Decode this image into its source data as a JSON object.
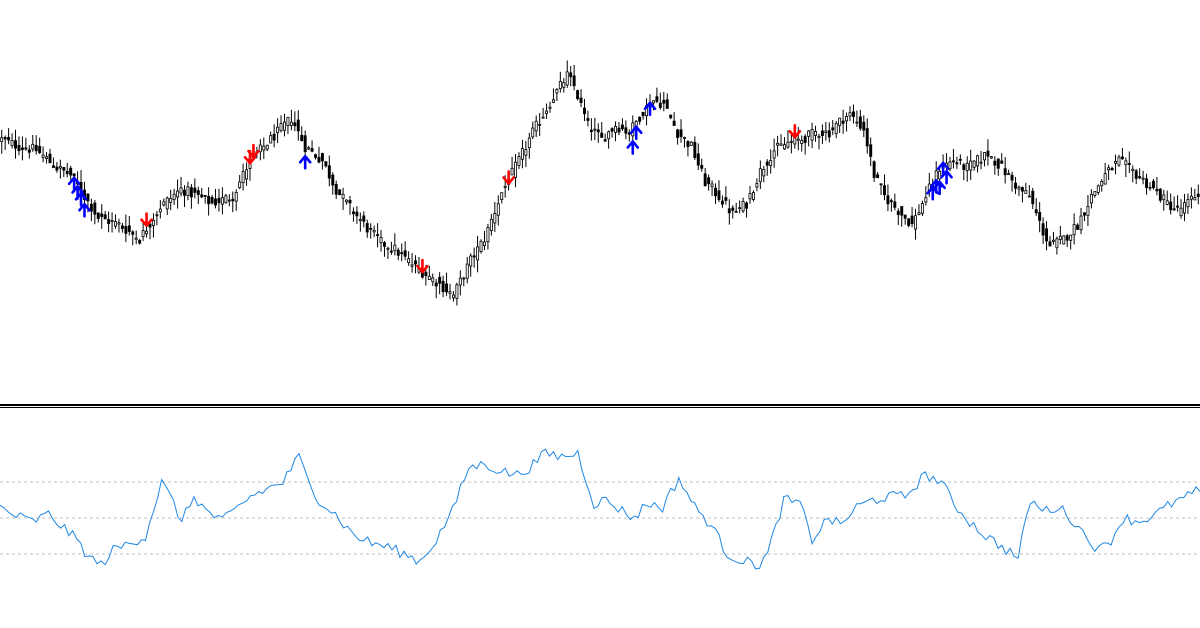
{
  "colors": {
    "background": "#ffffff",
    "candle": "#000000",
    "separator": "#000000",
    "oscillator_line": "#1e88e5",
    "level_line": "#c0c0c0",
    "buy_arrow": "#0000ff",
    "sell_arrow": "#ff0000"
  },
  "icons": {
    "buy_arrow": "arrow-up-icon",
    "sell_arrow": "arrow-down-icon"
  },
  "chart_data": [
    {
      "type": "candlestick",
      "panel": "price",
      "title": "",
      "xlabel": "",
      "ylabel": "",
      "grid": false,
      "ylim": [
        0,
        100
      ],
      "anchors": [
        [
          0,
          72
        ],
        [
          5,
          70
        ],
        [
          10,
          69
        ],
        [
          16,
          64
        ],
        [
          20,
          62
        ],
        [
          28,
          50
        ],
        [
          34,
          48
        ],
        [
          40,
          44
        ],
        [
          46,
          53
        ],
        [
          52,
          58
        ],
        [
          57,
          56
        ],
        [
          61,
          54
        ],
        [
          67,
          56
        ],
        [
          72,
          66
        ],
        [
          78,
          72
        ],
        [
          84,
          78
        ],
        [
          88,
          70
        ],
        [
          93,
          66
        ],
        [
          97,
          58
        ],
        [
          100,
          54
        ],
        [
          106,
          47
        ],
        [
          110,
          43
        ],
        [
          114,
          41
        ],
        [
          120,
          36
        ],
        [
          126,
          32
        ],
        [
          131,
          28
        ],
        [
          136,
          38
        ],
        [
          140,
          44
        ],
        [
          145,
          57
        ],
        [
          150,
          66
        ],
        [
          154,
          74
        ],
        [
          160,
          84
        ],
        [
          164,
          90
        ],
        [
          166,
          87
        ],
        [
          170,
          76
        ],
        [
          174,
          72
        ],
        [
          178,
          76
        ],
        [
          182,
          74
        ],
        [
          186,
          80
        ],
        [
          189,
          83
        ],
        [
          192,
          82
        ],
        [
          196,
          74
        ],
        [
          200,
          70
        ],
        [
          204,
          60
        ],
        [
          208,
          56
        ],
        [
          212,
          51
        ],
        [
          216,
          54
        ],
        [
          220,
          63
        ],
        [
          224,
          69
        ],
        [
          228,
          71
        ],
        [
          232,
          72
        ],
        [
          236,
          74
        ],
        [
          240,
          74
        ],
        [
          244,
          78
        ],
        [
          246,
          79
        ],
        [
          250,
          75
        ],
        [
          253,
          62
        ],
        [
          256,
          56
        ],
        [
          260,
          52
        ],
        [
          264,
          48
        ],
        [
          268,
          56
        ],
        [
          272,
          64
        ],
        [
          276,
          66
        ],
        [
          280,
          64
        ],
        [
          286,
          68
        ],
        [
          290,
          64
        ],
        [
          295,
          58
        ],
        [
          298,
          56
        ],
        [
          302,
          46
        ],
        [
          304,
          42
        ],
        [
          308,
          44
        ],
        [
          312,
          48
        ],
        [
          316,
          56
        ],
        [
          320,
          62
        ],
        [
          324,
          66
        ],
        [
          328,
          63
        ],
        [
          334,
          58
        ],
        [
          338,
          54
        ],
        [
          341,
          52
        ],
        [
          344,
          54
        ],
        [
          347,
          57
        ]
      ],
      "sell_signals": [
        42,
        72,
        73,
        122,
        147,
        230
      ],
      "buy_signals": [
        21,
        22,
        23,
        24,
        88,
        183,
        184,
        188,
        270,
        271,
        272,
        273,
        274
      ]
    },
    {
      "type": "line",
      "panel": "oscillator",
      "title": "",
      "xlabel": "",
      "ylabel": "",
      "grid": false,
      "ylim": [
        0,
        100
      ],
      "levels": [
        30,
        50,
        70
      ],
      "anchors": [
        [
          0,
          56
        ],
        [
          3,
          52
        ],
        [
          8,
          48
        ],
        [
          12,
          52
        ],
        [
          16,
          44
        ],
        [
          19,
          38
        ],
        [
          22,
          28
        ],
        [
          25,
          24
        ],
        [
          28,
          32
        ],
        [
          32,
          36
        ],
        [
          36,
          40
        ],
        [
          40,
          70
        ],
        [
          43,
          58
        ],
        [
          45,
          48
        ],
        [
          48,
          62
        ],
        [
          51,
          54
        ],
        [
          55,
          48
        ],
        [
          58,
          54
        ],
        [
          62,
          62
        ],
        [
          66,
          66
        ],
        [
          70,
          70
        ],
        [
          74,
          84
        ],
        [
          76,
          72
        ],
        [
          79,
          60
        ],
        [
          83,
          52
        ],
        [
          86,
          44
        ],
        [
          88,
          40
        ],
        [
          92,
          36
        ],
        [
          96,
          34
        ],
        [
          100,
          30
        ],
        [
          104,
          26
        ],
        [
          108,
          38
        ],
        [
          112,
          54
        ],
        [
          116,
          78
        ],
        [
          120,
          80
        ],
        [
          124,
          76
        ],
        [
          128,
          74
        ],
        [
          131,
          78
        ],
        [
          135,
          86
        ],
        [
          139,
          84
        ],
        [
          143,
          86
        ],
        [
          147,
          58
        ],
        [
          150,
          60
        ],
        [
          154,
          54
        ],
        [
          157,
          50
        ],
        [
          160,
          58
        ],
        [
          164,
          56
        ],
        [
          168,
          72
        ],
        [
          172,
          56
        ],
        [
          176,
          46
        ],
        [
          180,
          30
        ],
        [
          184,
          26
        ],
        [
          188,
          24
        ],
        [
          190,
          30
        ],
        [
          194,
          60
        ],
        [
          198,
          58
        ],
        [
          201,
          38
        ],
        [
          205,
          50
        ],
        [
          208,
          46
        ],
        [
          212,
          56
        ],
        [
          216,
          60
        ],
        [
          220,
          62
        ],
        [
          224,
          62
        ],
        [
          229,
          74
        ],
        [
          233,
          70
        ],
        [
          236,
          58
        ],
        [
          240,
          48
        ],
        [
          244,
          40
        ],
        [
          248,
          34
        ],
        [
          252,
          28
        ],
        [
          255,
          60
        ],
        [
          258,
          54
        ],
        [
          262,
          56
        ],
        [
          265,
          50
        ],
        [
          268,
          42
        ],
        [
          272,
          32
        ],
        [
          275,
          38
        ],
        [
          278,
          50
        ],
        [
          282,
          48
        ],
        [
          286,
          52
        ],
        [
          290,
          58
        ],
        [
          294,
          62
        ],
        [
          297,
          66
        ]
      ]
    }
  ]
}
